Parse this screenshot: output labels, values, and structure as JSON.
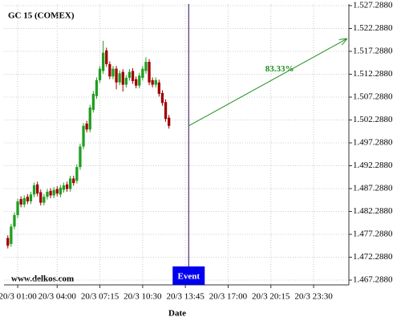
{
  "chart_data": {
    "type": "candlestick",
    "title": "GC 15 (COMEX)",
    "x_label": "Date",
    "watermark": "www.delkos.com",
    "x": [
      0.25,
      0.5,
      0.75,
      1,
      1.25,
      1.5,
      1.75,
      2,
      2.25,
      2.5,
      2.75,
      3,
      3.25,
      3.5,
      3.75,
      4,
      4.25,
      4.5,
      4.75,
      5,
      5.25,
      5.5,
      5.75,
      6,
      6.25,
      6.5,
      6.75,
      7,
      7.25,
      7.5,
      7.75,
      8,
      8.25,
      8.5,
      8.75,
      9,
      9.25,
      9.5,
      9.75,
      10,
      10.25,
      10.5,
      10.75,
      11,
      11.25,
      11.5,
      11.75,
      12,
      12.25,
      12.5
    ],
    "open": [
      1.4765,
      1.4752,
      1.479,
      1.4815,
      1.485,
      1.4838,
      1.4855,
      1.4845,
      1.486,
      1.4882,
      1.4865,
      1.4842,
      1.4855,
      1.4868,
      1.4858,
      1.4872,
      1.486,
      1.487,
      1.4882,
      1.4872,
      1.4895,
      1.489,
      1.492,
      1.4965,
      1.5015,
      1.5002,
      1.5045,
      1.5075,
      1.511,
      1.513,
      1.5175,
      1.5145,
      1.5118,
      1.5135,
      1.5105,
      1.5128,
      1.51,
      1.5115,
      1.513,
      1.5112,
      1.5098,
      1.5115,
      1.513,
      1.515,
      1.511,
      1.51,
      1.5105,
      1.5082,
      1.5062,
      1.5028
    ],
    "high": [
      1.4771,
      1.4796,
      1.4821,
      1.4851,
      1.4856,
      1.4858,
      1.4861,
      1.4866,
      1.4886,
      1.4888,
      1.4871,
      1.4861,
      1.4872,
      1.4874,
      1.4876,
      1.4878,
      1.4881,
      1.4886,
      1.4888,
      1.4901,
      1.4901,
      1.4926,
      1.4971,
      1.5016,
      1.5021,
      1.5056,
      1.5086,
      1.5116,
      1.5141,
      1.5196,
      1.5181,
      1.5151,
      1.5141,
      1.5141,
      1.5131,
      1.5134,
      1.5121,
      1.5134,
      1.5136,
      1.5118,
      1.5126,
      1.5141,
      1.516,
      1.5156,
      1.5116,
      1.5116,
      1.5111,
      1.5088,
      1.5068,
      1.5034
    ],
    "low": [
      1.4742,
      1.4746,
      1.4784,
      1.4809,
      1.4832,
      1.4832,
      1.4839,
      1.4839,
      1.4854,
      1.4856,
      1.4836,
      1.4836,
      1.4849,
      1.4852,
      1.4852,
      1.4856,
      1.4854,
      1.4864,
      1.4866,
      1.4866,
      1.4879,
      1.4884,
      1.4914,
      1.4959,
      1.4996,
      1.4996,
      1.5039,
      1.5069,
      1.5104,
      1.5124,
      1.5139,
      1.5112,
      1.5112,
      1.509,
      1.5099,
      1.5085,
      1.5094,
      1.5109,
      1.5102,
      1.5092,
      1.5092,
      1.5109,
      1.5124,
      1.5099,
      1.5094,
      1.5094,
      1.5074,
      1.5054,
      1.5019,
      1.5004
    ],
    "close": [
      1.4748,
      1.479,
      1.4815,
      1.4845,
      1.4838,
      1.4852,
      1.4845,
      1.486,
      1.488,
      1.4862,
      1.4842,
      1.4855,
      1.4866,
      1.4858,
      1.487,
      1.4862,
      1.4875,
      1.488,
      1.4872,
      1.4895,
      1.4885,
      1.492,
      1.4965,
      1.501,
      1.5002,
      1.505,
      1.508,
      1.511,
      1.5135,
      1.517,
      1.5145,
      1.5118,
      1.5135,
      1.5105,
      1.5125,
      1.51,
      1.5115,
      1.5128,
      1.5108,
      1.5098,
      1.512,
      1.5135,
      1.515,
      1.5105,
      1.51,
      1.511,
      1.508,
      1.506,
      1.5025,
      1.501
    ],
    "up_color": "#1f9e1f",
    "down_color": "#9e0000",
    "event": {
      "x": 14,
      "label": "Event",
      "color": "#2a0a5a"
    },
    "projection": {
      "x": [
        14,
        26
      ],
      "y": [
        1.501,
        1.52
      ],
      "label": "83.33%",
      "color": "#1f8f1f"
    },
    "xlim": [
      -0.04,
      26.18
    ],
    "xticks": [
      {
        "value": 1,
        "label": "20/3 01:00"
      },
      {
        "value": 4,
        "label": "20/3 04:00"
      },
      {
        "value": 7.25,
        "label": "20/3 07:15"
      },
      {
        "value": 10.5,
        "label": "20/3 10:30"
      },
      {
        "value": 13.75,
        "label": "20/3 13:45"
      },
      {
        "value": 17,
        "label": "20/3 17:00"
      },
      {
        "value": 20.25,
        "label": "20/3 20:15"
      },
      {
        "value": 23.5,
        "label": "20/3 23:30"
      }
    ],
    "ylim": [
      1.46624,
      1.52764
    ],
    "yticks": [
      {
        "value": 1.467288,
        "label": "1.467.2880"
      },
      {
        "value": 1.472288,
        "label": "1.472.2880"
      },
      {
        "value": 1.477288,
        "label": "1.477.2880"
      },
      {
        "value": 1.482288,
        "label": "1.482.2880"
      },
      {
        "value": 1.487288,
        "label": "1.487.2880"
      },
      {
        "value": 1.492288,
        "label": "1.492.2880"
      },
      {
        "value": 1.497288,
        "label": "1.497.2880"
      },
      {
        "value": 1.502288,
        "label": "1.502.2880"
      },
      {
        "value": 1.507288,
        "label": "1.507.2880"
      },
      {
        "value": 1.512288,
        "label": "1.512.2880"
      },
      {
        "value": 1.517288,
        "label": "1.517.2880"
      },
      {
        "value": 1.522288,
        "label": "1.522.2880"
      },
      {
        "value": 1.527288,
        "label": "1.527.2880"
      }
    ],
    "grid": true
  }
}
